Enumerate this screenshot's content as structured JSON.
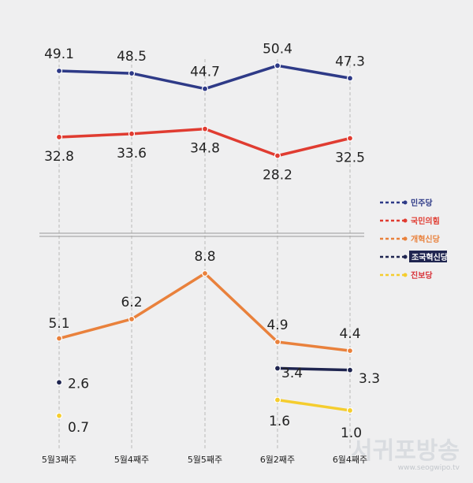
{
  "chart_data": {
    "type": "line",
    "categories": [
      "5월3째주",
      "5월4째주",
      "5월5째주",
      "6월2째주",
      "6월4째주"
    ],
    "series": [
      {
        "name": "민주당",
        "color": "#2e3a87",
        "values": [
          49.1,
          48.5,
          44.7,
          50.4,
          47.3
        ],
        "labels": [
          "49.1",
          "48.5",
          "44.7",
          "50.4",
          "47.3"
        ],
        "label_pos": "above",
        "panel": "upper"
      },
      {
        "name": "국민의힘",
        "color": "#e03c31",
        "values": [
          32.8,
          33.6,
          34.8,
          28.2,
          32.5
        ],
        "labels": [
          "32.8",
          "33.6",
          "34.8",
          "28.2",
          "32.5"
        ],
        "label_pos": "below",
        "panel": "upper"
      },
      {
        "name": "개혁신당",
        "color": "#e9813c",
        "values": [
          5.1,
          6.2,
          8.8,
          4.9,
          4.4
        ],
        "labels": [
          "5.1",
          "6.2",
          "8.8",
          "4.9",
          "4.4"
        ],
        "label_pos": "above",
        "panel": "lower"
      },
      {
        "name": "조국혁신당",
        "color": "#1f2550",
        "values": [
          2.6,
          null,
          null,
          3.4,
          3.3
        ],
        "labels": [
          "2.6",
          "",
          "",
          "3.4",
          "3.3"
        ],
        "label_pos": "right",
        "panel": "lower"
      },
      {
        "name": "진보당",
        "color": "#f5cd2e",
        "values": [
          0.7,
          null,
          null,
          1.6,
          1.0
        ],
        "labels": [
          "0.7",
          "",
          "",
          "1.6",
          "1.0"
        ],
        "label_pos": "right",
        "panel": "lower"
      }
    ],
    "axis_break": true,
    "grid": "vertical-dashed",
    "legend": "right"
  },
  "watermark": {
    "title": "서귀포방송",
    "url": "www.seogwipo.tv"
  }
}
